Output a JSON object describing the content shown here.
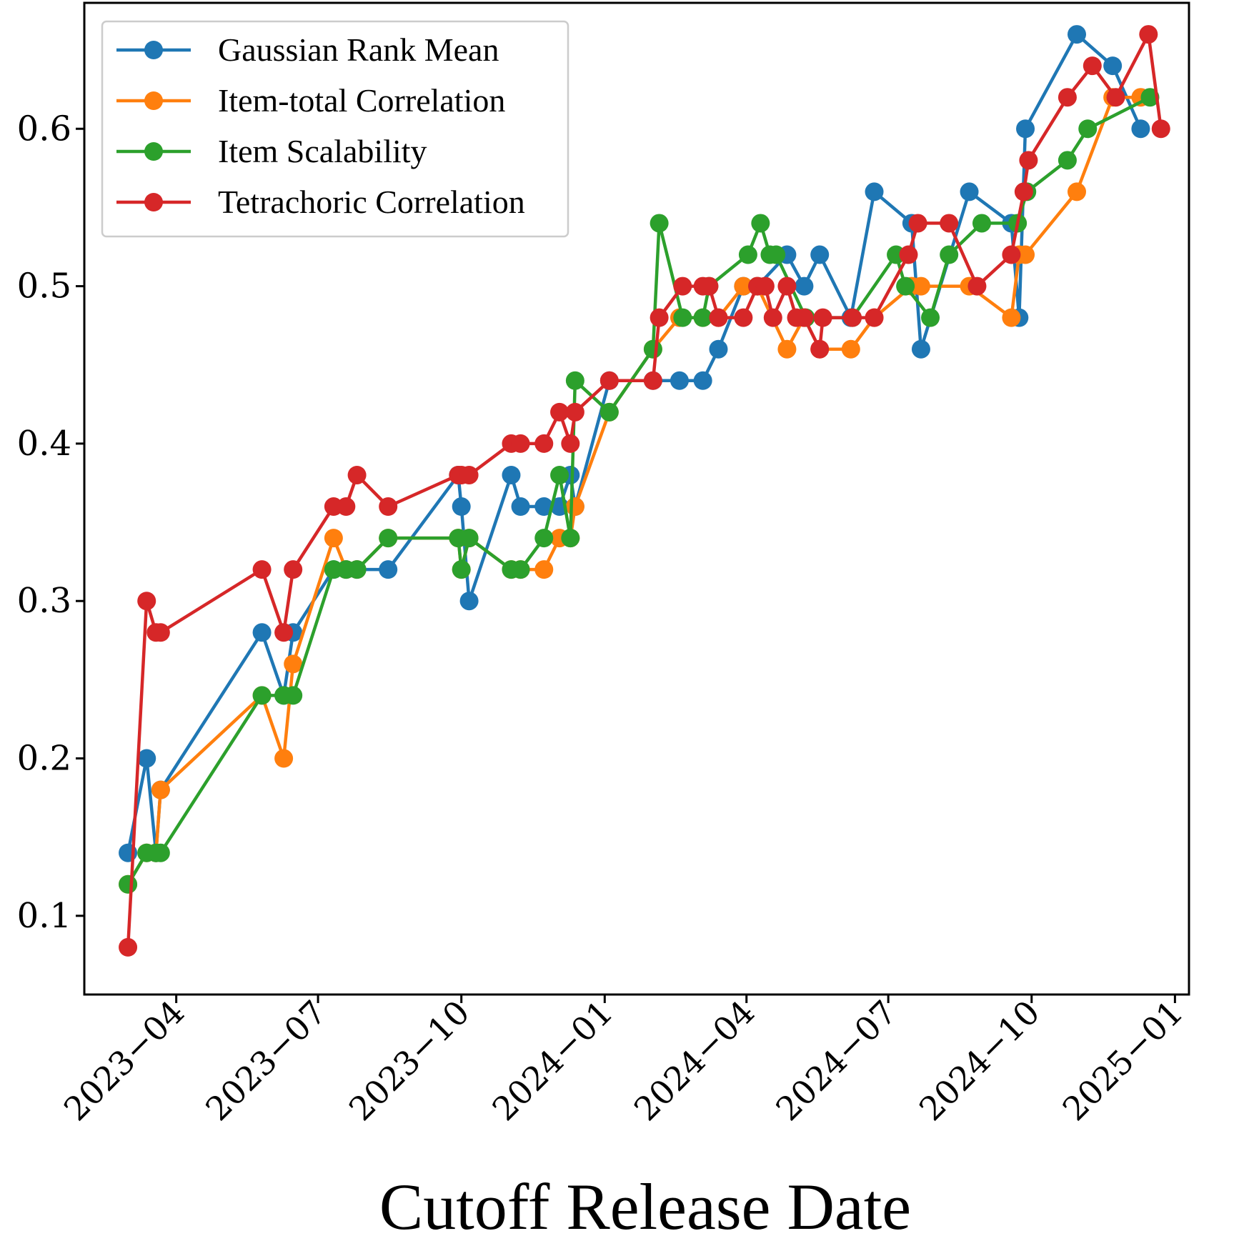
{
  "chart_data": {
    "type": "line",
    "title": "",
    "xlabel": "Cutoff Release Date",
    "ylabel": "",
    "x_tick_labels": [
      "2023−04",
      "2023−07",
      "2023−10",
      "2024−01",
      "2024−04",
      "2024−07",
      "2024−10",
      "2025−01"
    ],
    "x_ticks": [
      "2023-04-01",
      "2023-07-01",
      "2023-10-01",
      "2024-01-01",
      "2024-04-01",
      "2024-07-01",
      "2024-10-01",
      "2025-01-01"
    ],
    "xlim": [
      "2023-02-01",
      "2025-01-10"
    ],
    "y_tick_labels": [
      "0.1",
      "0.2",
      "0.3",
      "0.4",
      "0.5",
      "0.6"
    ],
    "y_ticks": [
      0.1,
      0.2,
      0.3,
      0.4,
      0.5,
      0.6
    ],
    "ylim": [
      0.05,
      0.68
    ],
    "grid": false,
    "legend_position": "upper-left",
    "series": [
      {
        "name": "Gaussian Rank Mean",
        "color": "#1f77b4",
        "x": [
          "2023-03-01",
          "2023-03-13",
          "2023-03-19",
          "2023-03-22",
          "2023-05-26",
          "2023-06-09",
          "2023-06-15",
          "2023-07-11",
          "2023-07-19",
          "2023-07-26",
          "2023-08-15",
          "2023-09-29",
          "2023-10-01",
          "2023-10-06",
          "2023-11-02",
          "2023-11-08",
          "2023-11-23",
          "2023-12-03",
          "2023-12-10",
          "2023-12-13",
          "2024-01-04",
          "2024-02-01",
          "2024-02-18",
          "2024-03-04",
          "2024-03-14",
          "2024-03-30",
          "2024-04-08",
          "2024-04-27",
          "2024-05-08",
          "2024-05-18",
          "2024-06-07",
          "2024-06-22",
          "2024-07-16",
          "2024-07-22",
          "2024-08-22",
          "2024-09-18",
          "2024-09-23",
          "2024-09-27",
          "2024-10-30",
          "2024-11-22",
          "2024-12-10"
        ],
        "y": [
          0.14,
          0.2,
          0.14,
          0.18,
          0.28,
          0.24,
          0.28,
          0.32,
          0.32,
          0.32,
          0.32,
          0.38,
          0.36,
          0.3,
          0.38,
          0.36,
          0.36,
          0.36,
          0.38,
          0.36,
          0.44,
          0.44,
          0.44,
          0.44,
          0.46,
          0.5,
          0.5,
          0.52,
          0.5,
          0.52,
          0.48,
          0.56,
          0.54,
          0.46,
          0.56,
          0.54,
          0.48,
          0.6,
          0.66,
          0.64,
          0.6
        ]
      },
      {
        "name": "Item-total Correlation",
        "color": "#ff7f0e",
        "x": [
          "2023-03-01",
          "2023-03-13",
          "2023-03-19",
          "2023-03-22",
          "2023-05-26",
          "2023-06-09",
          "2023-06-15",
          "2023-07-11",
          "2023-07-19",
          "2023-07-26",
          "2023-08-15",
          "2023-09-29",
          "2023-10-01",
          "2023-10-06",
          "2023-11-02",
          "2023-11-08",
          "2023-11-23",
          "2023-12-03",
          "2023-12-10",
          "2023-12-13",
          "2024-01-04",
          "2024-02-01",
          "2024-02-18",
          "2024-03-04",
          "2024-03-14",
          "2024-03-30",
          "2024-04-08",
          "2024-04-27",
          "2024-05-08",
          "2024-05-18",
          "2024-06-07",
          "2024-06-22",
          "2024-07-16",
          "2024-07-22",
          "2024-08-22",
          "2024-09-18",
          "2024-09-23",
          "2024-09-27",
          "2024-10-30",
          "2024-11-22",
          "2024-12-10"
        ],
        "y": [
          0.12,
          0.14,
          0.14,
          0.18,
          0.24,
          0.2,
          0.26,
          0.34,
          0.32,
          0.32,
          0.34,
          0.34,
          0.32,
          0.34,
          0.32,
          0.32,
          0.32,
          0.34,
          0.34,
          0.36,
          0.42,
          0.46,
          0.48,
          0.48,
          0.48,
          0.5,
          0.5,
          0.46,
          0.48,
          0.46,
          0.46,
          0.48,
          0.5,
          0.5,
          0.5,
          0.48,
          0.52,
          0.52,
          0.56,
          0.62,
          0.62
        ]
      },
      {
        "name": "Item Scalability",
        "color": "#2ca02c",
        "x": [
          "2023-03-01",
          "2023-03-13",
          "2023-03-19",
          "2023-03-22",
          "2023-05-26",
          "2023-06-09",
          "2023-06-15",
          "2023-07-11",
          "2023-07-19",
          "2023-07-26",
          "2023-08-15",
          "2023-09-29",
          "2023-10-01",
          "2023-10-06",
          "2023-11-02",
          "2023-11-08",
          "2023-11-23",
          "2023-12-03",
          "2023-12-10",
          "2023-12-13",
          "2024-01-04",
          "2024-02-01",
          "2024-02-05",
          "2024-02-20",
          "2024-03-04",
          "2024-03-08",
          "2024-04-02",
          "2024-04-10",
          "2024-04-16",
          "2024-04-20",
          "2024-05-09",
          "2024-06-08",
          "2024-07-06",
          "2024-07-12",
          "2024-07-28",
          "2024-08-09",
          "2024-08-30",
          "2024-09-22",
          "2024-09-28",
          "2024-10-24",
          "2024-11-06",
          "2024-12-16"
        ],
        "y": [
          0.12,
          0.14,
          0.14,
          0.14,
          0.24,
          0.24,
          0.24,
          0.32,
          0.32,
          0.32,
          0.34,
          0.34,
          0.32,
          0.34,
          0.32,
          0.32,
          0.34,
          0.38,
          0.34,
          0.44,
          0.42,
          0.46,
          0.54,
          0.48,
          0.48,
          0.5,
          0.52,
          0.54,
          0.52,
          0.52,
          0.48,
          0.48,
          0.52,
          0.5,
          0.48,
          0.52,
          0.54,
          0.54,
          0.56,
          0.58,
          0.6,
          0.62
        ]
      },
      {
        "name": "Tetrachoric Correlation",
        "color": "#d62728",
        "x": [
          "2023-03-01",
          "2023-03-13",
          "2023-03-19",
          "2023-03-22",
          "2023-05-26",
          "2023-06-09",
          "2023-06-15",
          "2023-07-11",
          "2023-07-19",
          "2023-07-26",
          "2023-08-15",
          "2023-09-29",
          "2023-10-01",
          "2023-10-06",
          "2023-11-02",
          "2023-11-08",
          "2023-11-23",
          "2023-12-03",
          "2023-12-10",
          "2023-12-13",
          "2024-01-04",
          "2024-02-01",
          "2024-02-05",
          "2024-02-20",
          "2024-03-04",
          "2024-03-08",
          "2024-03-14",
          "2024-03-30",
          "2024-04-08",
          "2024-04-13",
          "2024-04-18",
          "2024-04-27",
          "2024-05-03",
          "2024-05-08",
          "2024-05-18",
          "2024-05-20",
          "2024-06-08",
          "2024-06-22",
          "2024-07-14",
          "2024-07-20",
          "2024-08-09",
          "2024-08-27",
          "2024-09-18",
          "2024-09-26",
          "2024-09-29",
          "2024-10-24",
          "2024-11-09",
          "2024-11-24",
          "2024-12-15",
          "2024-12-23"
        ],
        "y": [
          0.08,
          0.3,
          0.28,
          0.28,
          0.32,
          0.28,
          0.32,
          0.36,
          0.36,
          0.38,
          0.36,
          0.38,
          0.38,
          0.38,
          0.4,
          0.4,
          0.4,
          0.42,
          0.4,
          0.42,
          0.44,
          0.44,
          0.48,
          0.5,
          0.5,
          0.5,
          0.48,
          0.48,
          0.5,
          0.5,
          0.48,
          0.5,
          0.48,
          0.48,
          0.46,
          0.48,
          0.48,
          0.48,
          0.52,
          0.54,
          0.54,
          0.5,
          0.52,
          0.56,
          0.58,
          0.62,
          0.64,
          0.62,
          0.66,
          0.6
        ]
      }
    ]
  }
}
